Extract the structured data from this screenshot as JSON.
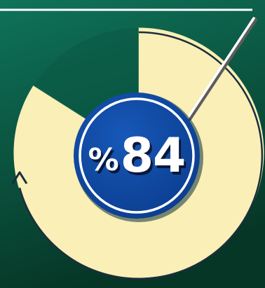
{
  "chart_data": {
    "type": "pie",
    "slices": [
      {
        "label": "",
        "value": 84,
        "color": "#f9efb7"
      },
      {
        "label": "",
        "value": 16,
        "color": "#0b5a45"
      }
    ],
    "title": "",
    "annotation": {
      "text": "84",
      "prefix": "%"
    }
  },
  "colors": {
    "background_top": "#0d6c55",
    "background_bottom": "#073b2c",
    "filled_slice": "#f9efb7",
    "badge_fill": "#0e4aa2",
    "badge_ring": "#ffffff",
    "arrow": "#1b2d3d"
  }
}
